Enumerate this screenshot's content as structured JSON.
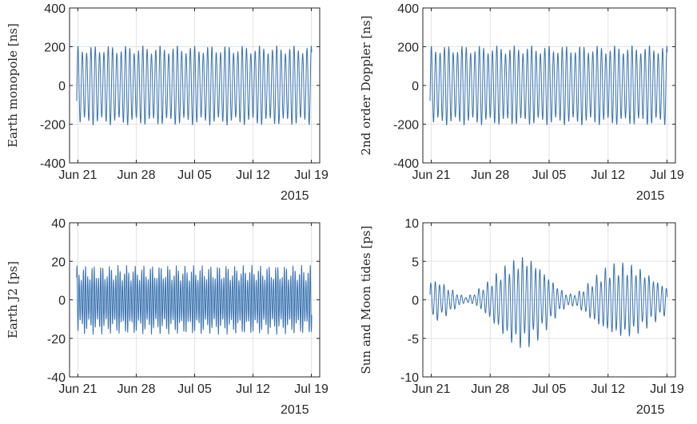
{
  "chart_data": [
    {
      "type": "line",
      "ylabel": "Earth monopole [ns]",
      "xlabel": "",
      "date_note": "2015",
      "x_ticks": [
        "Jun 21",
        "Jun 28",
        "Jul 05",
        "Jul 12",
        "Jul 19"
      ],
      "x_tick_dates": [
        "2015-06-21",
        "2015-06-28",
        "2015-07-05",
        "2015-07-12",
        "2015-07-19"
      ],
      "xlim": [
        "2015-06-20",
        "2015-07-20"
      ],
      "ylim": [
        -400,
        400
      ],
      "y_ticks": [
        "400",
        "200",
        "0",
        "-200",
        "-400"
      ],
      "grid": true,
      "series_pattern": "oscillation, about 2 cycles per day, amplitude about 205 ns",
      "envelope": [
        [
          "2015-06-21",
          -205,
          205
        ],
        [
          "2015-07-19",
          -205,
          205
        ]
      ],
      "line_color": "#3872b0"
    },
    {
      "type": "line",
      "ylabel": "2nd order Doppler [ns]",
      "xlabel": "",
      "date_note": "2015",
      "x_ticks": [
        "Jun 21",
        "Jun 28",
        "Jul 05",
        "Jul 12",
        "Jul 19"
      ],
      "x_tick_dates": [
        "2015-06-21",
        "2015-06-28",
        "2015-07-05",
        "2015-07-12",
        "2015-07-19"
      ],
      "xlim": [
        "2015-06-20",
        "2015-07-20"
      ],
      "ylim": [
        -400,
        400
      ],
      "y_ticks": [
        "400",
        "200",
        "0",
        "-200",
        "-400"
      ],
      "grid": true,
      "series_pattern": "oscillation, about 2 cycles per day, amplitude about 205 ns",
      "envelope": [
        [
          "2015-06-21",
          -205,
          205
        ],
        [
          "2015-07-19",
          -205,
          205
        ]
      ],
      "line_color": "#3872b0"
    },
    {
      "type": "line",
      "ylabel": "Earth J2 [ps]",
      "xlabel": "",
      "date_note": "2015",
      "x_ticks": [
        "Jun 21",
        "Jun 28",
        "Jul 05",
        "Jul 12",
        "Jul 19"
      ],
      "x_tick_dates": [
        "2015-06-21",
        "2015-06-28",
        "2015-07-05",
        "2015-07-12",
        "2015-07-19"
      ],
      "xlim": [
        "2015-06-20",
        "2015-07-20"
      ],
      "ylim": [
        -40,
        40
      ],
      "y_ticks": [
        "40",
        "20",
        "0",
        "-20",
        "-40"
      ],
      "grid": true,
      "series_pattern": "oscillation, about 4 cycles per day, amplitude 12 to 19 ps",
      "envelope": [
        [
          "2015-06-21",
          -18,
          18
        ],
        [
          "2015-07-19",
          -18,
          18
        ]
      ],
      "line_color": "#3872b0"
    },
    {
      "type": "line",
      "ylabel": "Sun and Moon tides [ps]",
      "xlabel": "",
      "date_note": "2015",
      "x_ticks": [
        "Jun 21",
        "Jun 28",
        "Jul 05",
        "Jul 12",
        "Jul 19"
      ],
      "x_tick_dates": [
        "2015-06-21",
        "2015-06-28",
        "2015-07-05",
        "2015-07-12",
        "2015-07-19"
      ],
      "xlim": [
        "2015-06-20",
        "2015-07-20"
      ],
      "ylim": [
        -10,
        10
      ],
      "y_ticks": [
        "10",
        "5",
        "0",
        "-5",
        "-10"
      ],
      "grid": true,
      "series_pattern": "oscillation, about 2 cycles per day, amplitude follows the envelope",
      "envelope": [
        [
          "2015-06-21",
          -3.0,
          2.8
        ],
        [
          "2015-06-22",
          -2.6,
          2.6
        ],
        [
          "2015-06-23",
          -2.0,
          1.8
        ],
        [
          "2015-06-24",
          -1.1,
          1.0
        ],
        [
          "2015-06-25",
          -0.4,
          0.4
        ],
        [
          "2015-06-26",
          -0.6,
          0.8
        ],
        [
          "2015-06-27",
          -1.5,
          1.8
        ],
        [
          "2015-06-28",
          -2.8,
          2.6
        ],
        [
          "2015-06-29",
          -4.2,
          3.8
        ],
        [
          "2015-06-30",
          -5.4,
          4.8
        ],
        [
          "2015-07-01",
          -6.3,
          5.6
        ],
        [
          "2015-07-02",
          -6.5,
          6.1
        ],
        [
          "2015-07-03",
          -6.0,
          5.7
        ],
        [
          "2015-07-04",
          -4.9,
          4.6
        ],
        [
          "2015-07-05",
          -3.5,
          3.2
        ],
        [
          "2015-07-06",
          -2.0,
          1.9
        ],
        [
          "2015-07-07",
          -1.0,
          0.9
        ],
        [
          "2015-07-08",
          -0.8,
          0.8
        ],
        [
          "2015-07-09",
          -1.6,
          1.5
        ],
        [
          "2015-07-10",
          -2.8,
          2.6
        ],
        [
          "2015-07-11",
          -3.8,
          3.6
        ],
        [
          "2015-07-12",
          -4.6,
          4.4
        ],
        [
          "2015-07-13",
          -5.1,
          4.9
        ],
        [
          "2015-07-14",
          -5.2,
          4.9
        ],
        [
          "2015-07-15",
          -4.9,
          4.7
        ],
        [
          "2015-07-16",
          -4.3,
          4.2
        ],
        [
          "2015-07-17",
          -3.4,
          3.4
        ],
        [
          "2015-07-18",
          -2.6,
          2.5
        ],
        [
          "2015-07-19",
          -1.9,
          1.8
        ]
      ],
      "line_color": "#3872b0"
    }
  ]
}
